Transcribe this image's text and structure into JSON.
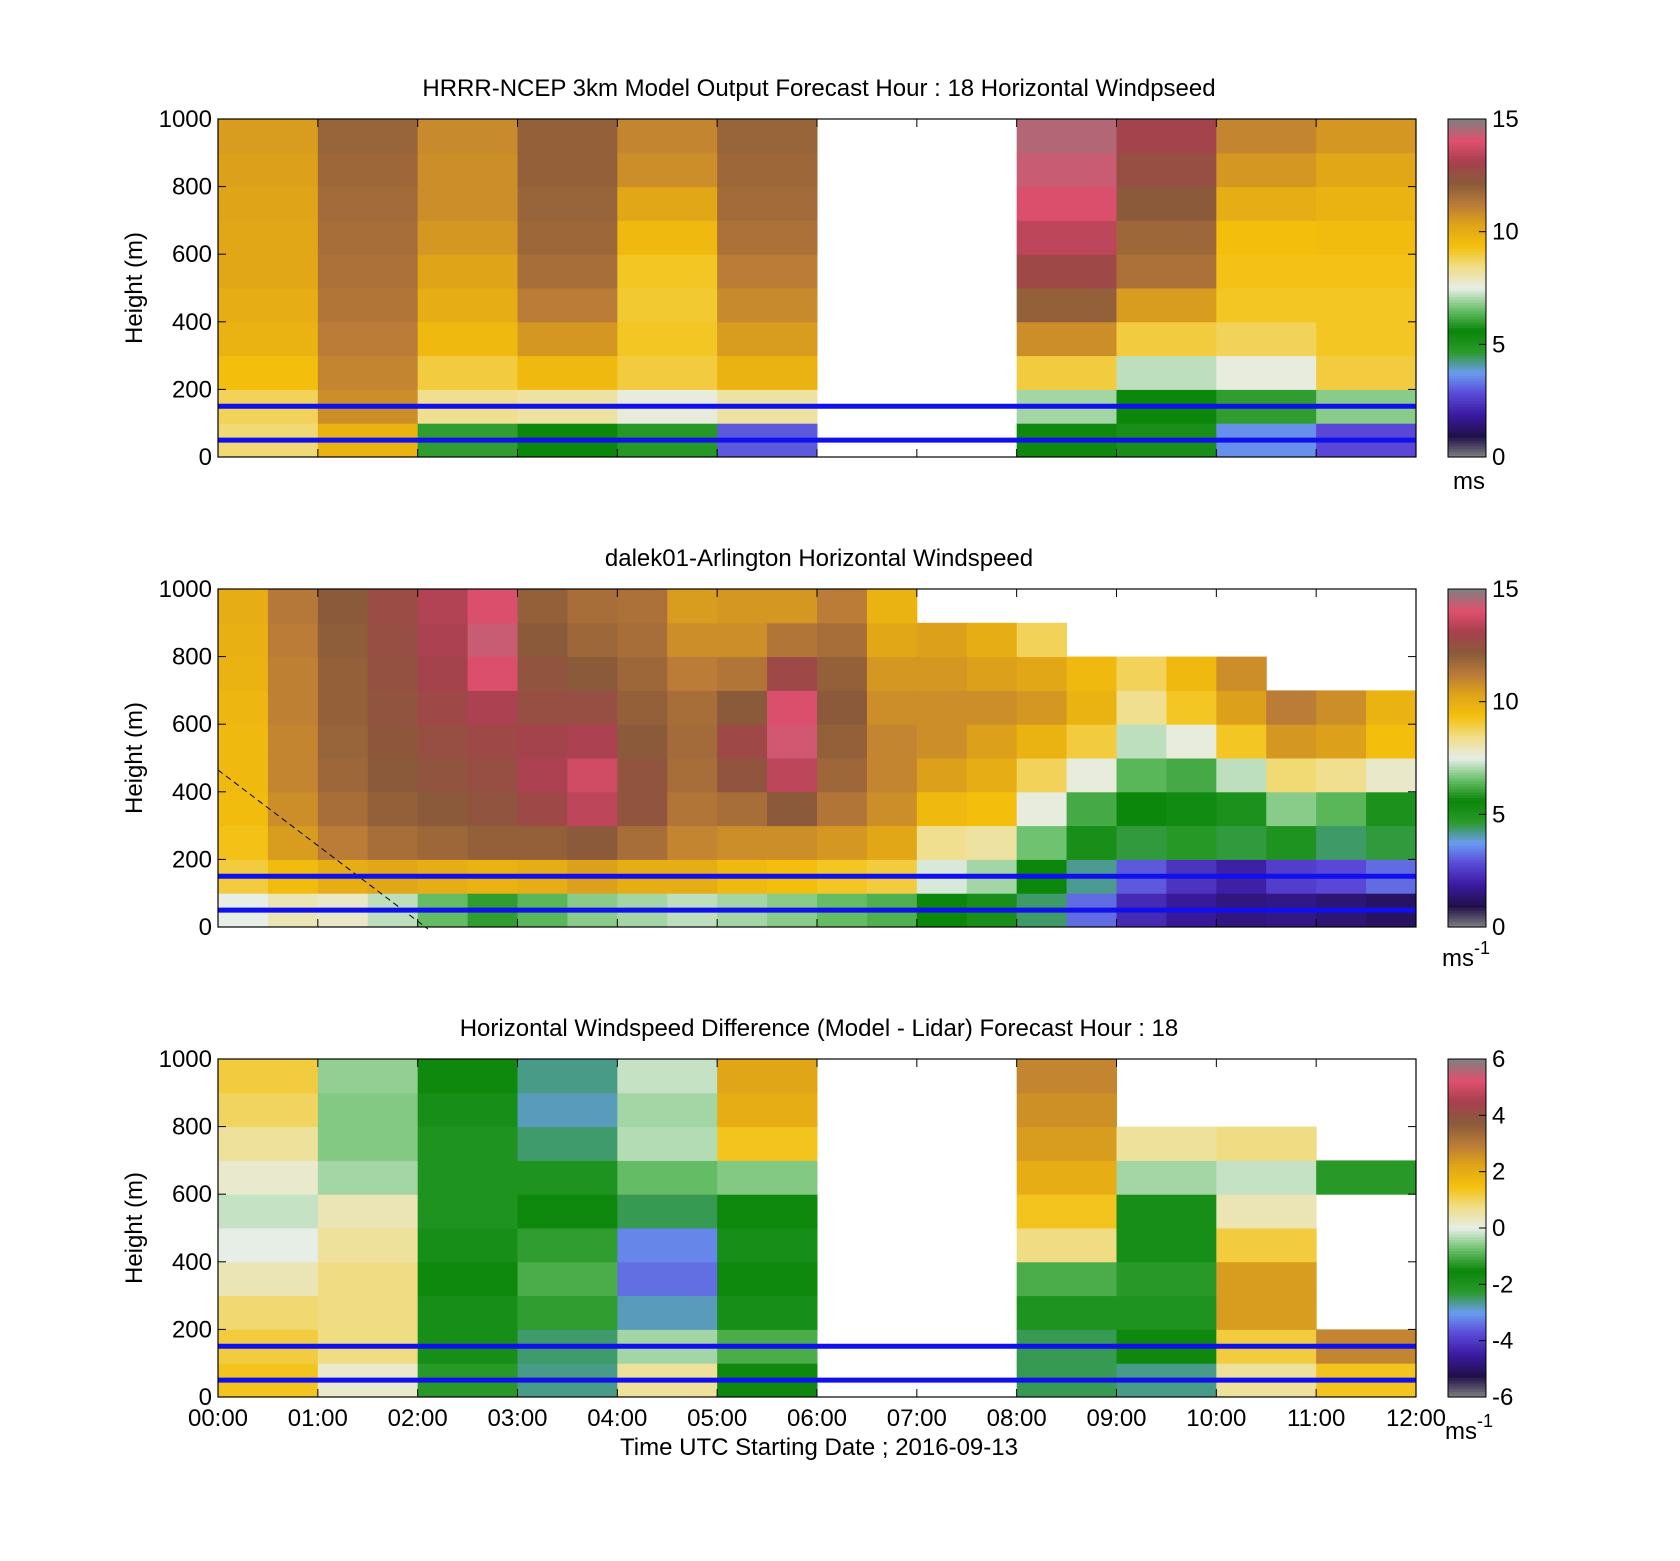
{
  "colors": {
    "reference_line": "#1010ee",
    "no_data": "#ffffff",
    "frame": "#000000"
  },
  "colormap": [
    "#808080",
    "#20104a",
    "#3a1aa0",
    "#5a48d8",
    "#6a9cf0",
    "#2a9a2a",
    "#0a860a",
    "#6ac06a",
    "#e6eee6",
    "#f0de8a",
    "#f4c00c",
    "#e0a418",
    "#b87a38",
    "#8a5a3a",
    "#a8404e",
    "#e0506e",
    "#808080"
  ],
  "chart_data": [
    {
      "type": "heatmap",
      "title": "HRRR-NCEP 3km Model Output   Forecast Hour : 18 Horizontal Windpseed",
      "ylabel": "Height (m)",
      "xlabel": "",
      "xlim": [
        0,
        12
      ],
      "ylim": [
        0,
        1000
      ],
      "yticks": [
        0,
        200,
        400,
        600,
        800,
        1000
      ],
      "x_ticklabels": [],
      "clim": [
        0,
        15
      ],
      "cbar_ticks": [
        0,
        5,
        10,
        15
      ],
      "cbar_unit": "ms",
      "cbar_unit_sup": "",
      "reference_lines_m": [
        150,
        50
      ],
      "x_start": 0,
      "x_step": 1,
      "y_start": 0,
      "y_step": 100,
      "missing_columns": [
        6,
        7
      ],
      "data": [
        [
          8.6,
          8.8,
          9.4,
          9.8,
          10.0,
          10.2,
          10.2,
          10.3,
          10.4,
          10.5
        ],
        [
          9.8,
          10.8,
          11.0,
          11.2,
          11.4,
          11.5,
          11.6,
          11.7,
          11.8,
          11.9
        ],
        [
          6.0,
          8.4,
          9.0,
          9.6,
          10.0,
          10.3,
          10.6,
          10.8,
          10.8,
          10.9
        ],
        [
          5.6,
          8.2,
          9.6,
          10.6,
          11.2,
          11.6,
          11.8,
          11.9,
          12.0,
          12.0
        ],
        [
          4.8,
          7.6,
          9.0,
          9.2,
          9.1,
          9.2,
          9.6,
          10.2,
          10.8,
          11.0
        ],
        [
          3.0,
          8.2,
          9.8,
          10.5,
          10.9,
          11.2,
          11.5,
          11.7,
          11.8,
          11.9
        ],
        [],
        [],
        [
          5.5,
          7.0,
          9.0,
          10.8,
          12.0,
          12.8,
          13.5,
          14.0,
          14.3,
          14.5
        ],
        [
          5.2,
          5.6,
          7.2,
          9.0,
          10.5,
          11.5,
          11.8,
          12.2,
          12.6,
          13.0
        ],
        [
          3.6,
          6.0,
          7.6,
          8.8,
          9.2,
          9.3,
          9.4,
          10.0,
          10.6,
          11.0
        ],
        [
          2.8,
          6.8,
          9.0,
          9.2,
          9.2,
          9.3,
          9.5,
          9.8,
          10.2,
          10.6
        ]
      ]
    },
    {
      "type": "heatmap",
      "title": "dalek01-Arlington  Horizontal Windspeed",
      "ylabel": "Height (m)",
      "xlabel": "",
      "xlim": [
        0,
        12
      ],
      "ylim": [
        0,
        1000
      ],
      "yticks": [
        0,
        200,
        400,
        600,
        800,
        1000
      ],
      "x_ticklabels": [],
      "clim": [
        0,
        15
      ],
      "cbar_ticks": [
        0,
        5,
        10,
        15
      ],
      "cbar_unit": "ms",
      "cbar_unit_sup": "-1",
      "reference_lines_m": [
        150,
        50
      ],
      "x_start": 0,
      "x_step": 0.5,
      "y_start": 0,
      "y_step": 100,
      "missing_columns": [],
      "data": [
        [
          7.5,
          9.0,
          9.3,
          9.5,
          9.6,
          9.6,
          9.7,
          9.8,
          9.9,
          10.0
        ],
        [
          8.0,
          9.5,
          10.5,
          10.8,
          11.0,
          11.0,
          11.1,
          11.1,
          11.2,
          11.3
        ],
        [
          7.8,
          10.0,
          11.2,
          11.6,
          11.8,
          11.9,
          12.0,
          12.0,
          12.1,
          12.2
        ],
        [
          7.2,
          10.2,
          11.6,
          12.0,
          12.2,
          12.3,
          12.4,
          12.5,
          12.6,
          12.7
        ],
        [
          6.5,
          10.0,
          11.8,
          12.2,
          12.4,
          12.6,
          12.8,
          13.0,
          13.2,
          13.3
        ],
        [
          6.0,
          9.8,
          12.0,
          12.4,
          12.6,
          12.8,
          13.2,
          14.0,
          14.3,
          14.0
        ],
        [
          6.4,
          10.0,
          12.0,
          12.8,
          13.2,
          13.0,
          12.6,
          12.4,
          12.2,
          12.0
        ],
        [
          6.8,
          10.4,
          12.2,
          13.5,
          13.8,
          13.2,
          12.6,
          12.2,
          11.8,
          11.6
        ],
        [
          7.0,
          10.0,
          11.6,
          12.4,
          12.4,
          12.2,
          12.0,
          11.8,
          11.6,
          11.5
        ],
        [
          7.2,
          10.0,
          11.0,
          11.4,
          11.6,
          11.7,
          11.6,
          11.2,
          10.8,
          10.5
        ],
        [
          7.0,
          9.6,
          10.8,
          11.6,
          12.4,
          12.8,
          12.2,
          11.4,
          10.8,
          10.6
        ],
        [
          6.8,
          9.4,
          10.8,
          12.2,
          13.5,
          14.2,
          14.0,
          12.8,
          11.4,
          10.6
        ],
        [
          6.5,
          9.2,
          10.6,
          11.4,
          11.8,
          12.0,
          12.2,
          12.0,
          11.6,
          11.2
        ],
        [
          6.3,
          9.0,
          10.2,
          10.8,
          11.0,
          11.0,
          10.8,
          10.6,
          10.2,
          9.8
        ],
        [
          5.6,
          7.4,
          8.4,
          9.6,
          10.4,
          10.8,
          10.8,
          10.6,
          10.4,
          null
        ],
        [
          5.2,
          7.0,
          8.2,
          9.4,
          10.0,
          10.4,
          10.8,
          10.4,
          10.0,
          null
        ],
        [
          4.4,
          5.6,
          6.6,
          7.6,
          8.8,
          9.8,
          10.6,
          10.2,
          8.8,
          null
        ],
        [
          3.2,
          4.2,
          5.2,
          6.2,
          7.6,
          9.0,
          9.8,
          9.6,
          null,
          null
        ],
        [
          2.2,
          3.0,
          4.6,
          5.6,
          6.4,
          7.2,
          8.4,
          8.8,
          null,
          null
        ],
        [
          1.8,
          2.4,
          4.8,
          5.4,
          6.2,
          7.6,
          9.2,
          9.6,
          null,
          null
        ],
        [
          1.5,
          2.0,
          4.6,
          5.8,
          7.2,
          9.2,
          10.4,
          10.8,
          null,
          null
        ],
        [
          1.6,
          2.6,
          5.0,
          6.8,
          8.6,
          10.6,
          11.2,
          null,
          null,
          null
        ],
        [
          1.4,
          2.8,
          4.4,
          6.4,
          8.4,
          10.4,
          10.8,
          null,
          null,
          null
        ],
        [
          1.2,
          3.2,
          4.6,
          5.8,
          7.8,
          9.4,
          9.8,
          null,
          null,
          null
        ]
      ]
    },
    {
      "type": "heatmap",
      "title": "Horizontal Windspeed Difference (Model - Lidar) Forecast Hour : 18",
      "ylabel": "Height (m)",
      "xlabel": "Time UTC  Starting Date ; 2016-09-13",
      "xlim": [
        0,
        12
      ],
      "ylim": [
        0,
        1000
      ],
      "yticks": [
        0,
        200,
        400,
        600,
        800,
        1000
      ],
      "x_ticklabels": [
        "00:00",
        "01:00",
        "02:00",
        "03:00",
        "04:00",
        "05:00",
        "06:00",
        "07:00",
        "08:00",
        "09:00",
        "10:00",
        "11:00",
        "12:00"
      ],
      "clim": [
        -6,
        6
      ],
      "cbar_ticks": [
        -6,
        -4,
        -2,
        0,
        2,
        4,
        6
      ],
      "cbar_unit": "ms",
      "cbar_unit_sup": "-1",
      "reference_lines_m": [
        150,
        50
      ],
      "x_start": 0,
      "x_step": 1,
      "y_start": 0,
      "y_step": 100,
      "missing_columns": [
        6,
        7
      ],
      "data": [
        [
          1.4,
          1.2,
          0.9,
          0.4,
          0.0,
          -0.2,
          0.2,
          0.6,
          1.0,
          1.2
        ],
        [
          0.2,
          0.8,
          0.8,
          0.8,
          0.6,
          0.4,
          -0.4,
          -0.6,
          -0.6,
          -0.5
        ],
        [
          -2.2,
          -1.8,
          -1.4,
          -1.6,
          -1.8,
          -2.0,
          -2.0,
          -2.0,
          -1.8,
          -1.6
        ],
        [
          -2.6,
          -2.5,
          -1.2,
          -1.0,
          -1.2,
          -1.6,
          -2.0,
          -2.5,
          -2.8,
          -2.6
        ],
        [
          0.6,
          -0.4,
          -2.8,
          -3.4,
          -3.2,
          -2.4,
          -0.8,
          -0.3,
          -0.4,
          -0.2
        ],
        [
          -1.6,
          -1.0,
          -1.4,
          -1.6,
          -1.8,
          -1.6,
          -0.6,
          1.4,
          2.0,
          2.2
        ],
        [],
        [],
        [
          -2.4,
          -2.4,
          -2.0,
          -1.0,
          0.8,
          1.4,
          2.0,
          2.4,
          2.6,
          2.8
        ],
        [
          -2.6,
          -1.6,
          -2.0,
          -2.2,
          -1.8,
          -1.4,
          -0.4,
          0.6,
          null,
          null
        ],
        [
          0.6,
          1.2,
          2.4,
          2.4,
          1.2,
          0.4,
          -0.2,
          0.8,
          null,
          null
        ],
        [
          1.4,
          2.8,
          null,
          null,
          null,
          null,
          -2.2,
          null,
          null,
          null
        ]
      ]
    }
  ]
}
